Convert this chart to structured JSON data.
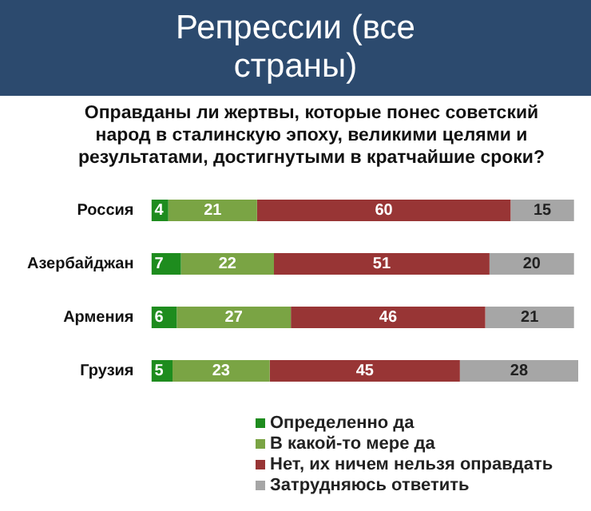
{
  "chart_data": {
    "type": "bar",
    "orientation": "horizontal",
    "stacked": true,
    "data_labels": true,
    "legend": "bottom",
    "title": "Репрессии (все страны)",
    "subtitle": "Оправданы ли жертвы, которые понес советский народ в сталинскую эпоху, великими целями и результатами, достигнутыми в кратчайшие сроки?",
    "categories": [
      "Россия",
      "Азербайджан",
      "Армения",
      "Грузия"
    ],
    "series": [
      {
        "name": "Определенно да",
        "color": "#1e8c1e",
        "values": [
          4,
          7,
          6,
          5
        ]
      },
      {
        "name": "В какой-то мере да",
        "color": "#7aa444",
        "values": [
          21,
          22,
          27,
          23
        ]
      },
      {
        "name": "Нет, их ничем нельзя оправдать",
        "color": "#983535",
        "values": [
          60,
          51,
          46,
          45
        ]
      },
      {
        "name": "Затрудняюсь ответить",
        "color": "#a6a6a6",
        "values": [
          15,
          20,
          21,
          28
        ]
      }
    ]
  }
}
